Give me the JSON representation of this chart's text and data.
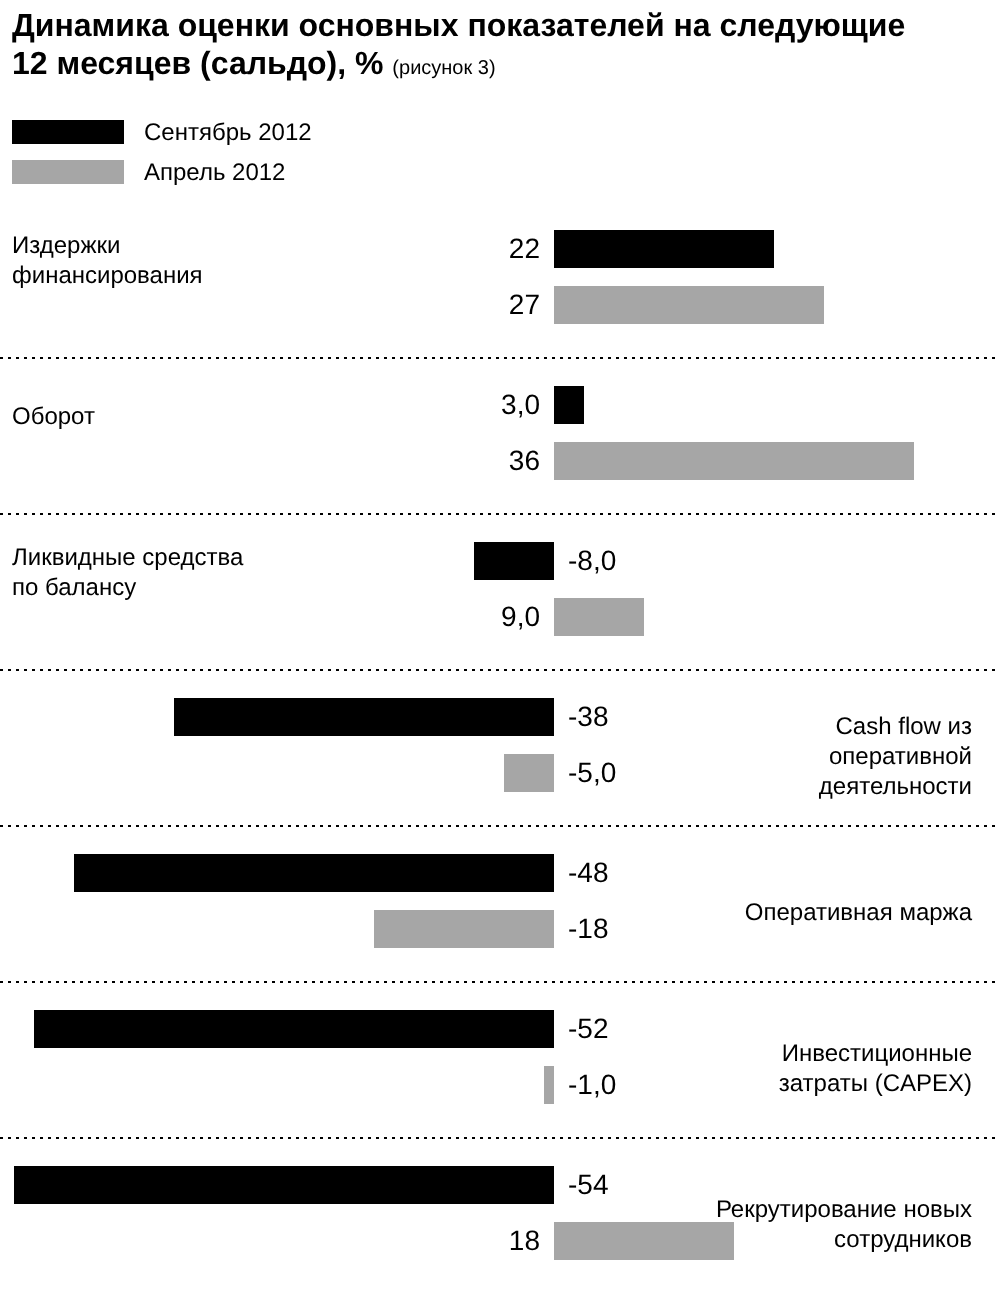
{
  "chart_data": {
    "type": "bar",
    "orientation": "horizontal",
    "title": "Динамика оценки основных показателей на следующие 12 месяцев (сальдо), %",
    "subtitle": "(рисунок 3)",
    "categories": [
      "Издержки финансирования",
      "Оборот",
      "Ликвидные средства по балансу",
      "Cash flow из оперативной деятельности",
      "Оперативная маржа",
      "Инвестиционные затраты (CAPEX)",
      "Рекрутирование новых сотрудников"
    ],
    "series": [
      {
        "name": "Сентябрь 2012",
        "color": "#000000",
        "values": [
          22,
          3,
          -8,
          -38,
          -48,
          -52,
          -54
        ],
        "value_labels": [
          "22",
          "3,0",
          "-8,0",
          "-38",
          "-48",
          "-52",
          "-54"
        ]
      },
      {
        "name": "Апрель 2012",
        "color": "#a6a6a6",
        "values": [
          27,
          36,
          9,
          -5,
          -18,
          -1,
          18
        ],
        "value_labels": [
          "27",
          "36",
          "9,0",
          "-5,0",
          "-18",
          "-1,0",
          "18"
        ]
      }
    ],
    "legend": "top left"
  }
}
